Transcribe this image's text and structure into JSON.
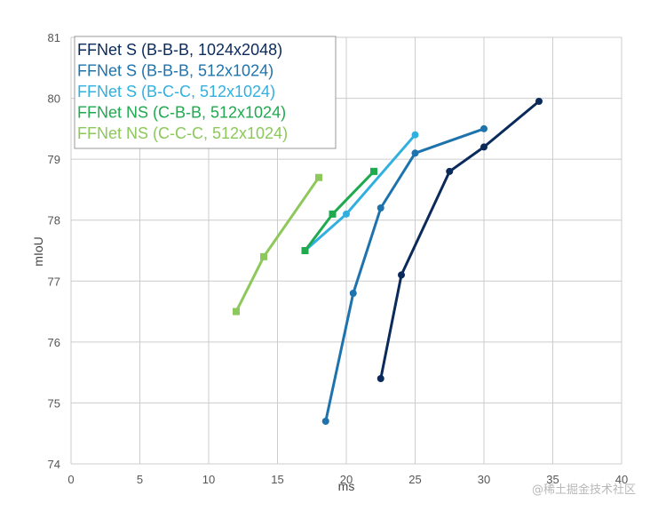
{
  "chart_data": {
    "type": "line",
    "xlabel": "ms",
    "ylabel": "mIoU",
    "xlim": [
      0,
      40
    ],
    "ylim": [
      74,
      81
    ],
    "x_ticks": [
      "0",
      "5",
      "10",
      "15",
      "20",
      "25",
      "30",
      "35",
      "40"
    ],
    "y_ticks": [
      "74",
      "75",
      "76",
      "77",
      "78",
      "79",
      "80",
      "81"
    ],
    "grid": true,
    "legend_position": "top-left",
    "series": [
      {
        "name": "FFNet S (B-B-B, 1024x2048)",
        "color": "#0b2a5c",
        "marker": "circle",
        "x": [
          22.5,
          24,
          27.5,
          30,
          34
        ],
        "y": [
          75.4,
          77.1,
          78.8,
          79.2,
          79.95
        ]
      },
      {
        "name": "FFNet S (B-B-B, 512x1024)",
        "color": "#1f73ad",
        "marker": "circle",
        "x": [
          18.5,
          20.5,
          22.5,
          25,
          30
        ],
        "y": [
          74.7,
          76.8,
          78.2,
          79.1,
          79.5
        ]
      },
      {
        "name": "FFNet S (B-C-C, 512x1024)",
        "color": "#31b0e0",
        "marker": "circle",
        "x": [
          17,
          20,
          25
        ],
        "y": [
          77.5,
          78.1,
          79.4
        ]
      },
      {
        "name": "FFNet NS (C-B-B, 512x1024)",
        "color": "#1faa4f",
        "marker": "square",
        "x": [
          17,
          19,
          22
        ],
        "y": [
          77.5,
          78.1,
          78.8
        ]
      },
      {
        "name": "FFNet NS (C-C-C, 512x1024)",
        "color": "#8cc85a",
        "marker": "square",
        "x": [
          12,
          14,
          18
        ],
        "y": [
          76.5,
          77.4,
          78.7
        ]
      }
    ]
  },
  "watermark": "@稀土掘金技术社区"
}
